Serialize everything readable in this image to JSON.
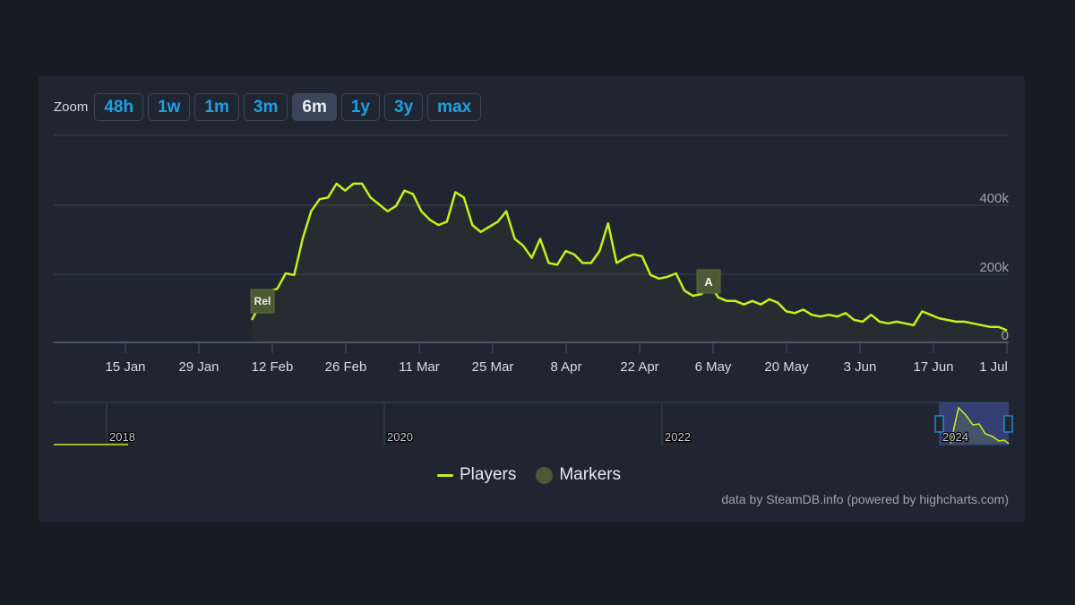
{
  "zoom": {
    "label": "Zoom",
    "buttons": [
      "48h",
      "1w",
      "1m",
      "3m",
      "6m",
      "1y",
      "3y",
      "max"
    ],
    "active": "6m"
  },
  "legend": {
    "players": "Players",
    "markers": "Markers"
  },
  "credits": "data by SteamDB.info (powered by highcharts.com)",
  "colors": {
    "line": "#c2f21a",
    "marker": "#4a5a34",
    "accent": "#1da1e6",
    "panel": "#1f2631",
    "background": "#171b22"
  },
  "markers": [
    {
      "label": "Rel",
      "date": "~9 Feb"
    },
    {
      "label": "A",
      "date": "~6 May"
    }
  ],
  "navigator": {
    "years": [
      "2018",
      "2020",
      "2022",
      "2024"
    ]
  },
  "chart_data": {
    "type": "line",
    "title": "",
    "xlabel": "",
    "ylabel": "Players",
    "x_ticks": [
      "15 Jan",
      "29 Jan",
      "12 Feb",
      "26 Feb",
      "11 Mar",
      "25 Mar",
      "8 Apr",
      "22 Apr",
      "6 May",
      "20 May",
      "3 Jun",
      "17 Jun",
      "1 Jul"
    ],
    "y_ticks": [
      "0",
      "200k",
      "400k"
    ],
    "ylim": [
      0,
      600000
    ],
    "grid": true,
    "legend_position": "bottom",
    "series": [
      {
        "name": "Players",
        "x": [
          "9 Feb",
          "10 Feb",
          "11 Feb",
          "12 Feb",
          "13 Feb",
          "14 Feb",
          "15 Feb",
          "16 Feb",
          "17 Feb",
          "18 Feb",
          "19 Feb",
          "20 Feb",
          "21 Feb",
          "22 Feb",
          "23 Feb",
          "24 Feb",
          "25 Feb",
          "26 Feb",
          "27 Feb",
          "28 Feb",
          "1 Mar",
          "2 Mar",
          "3 Mar",
          "4 Mar",
          "5 Mar",
          "6 Mar",
          "7 Mar",
          "8 Mar",
          "9 Mar",
          "10 Mar",
          "11 Mar",
          "12 Mar",
          "13 Mar",
          "14 Mar",
          "15 Mar",
          "17 Mar",
          "19 Mar",
          "21 Mar",
          "23 Mar",
          "25 Mar",
          "27 Mar",
          "29 Mar",
          "31 Mar",
          "2 Apr",
          "4 Apr",
          "6 Apr",
          "7 Apr",
          "8 Apr",
          "10 Apr",
          "12 Apr",
          "14 Apr",
          "16 Apr",
          "18 Apr",
          "20 Apr",
          "22 Apr",
          "24 Apr",
          "26 Apr",
          "28 Apr",
          "30 Apr",
          "2 May",
          "4 May",
          "6 May",
          "8 May",
          "10 May",
          "12 May",
          "14 May",
          "16 May",
          "18 May",
          "20 May",
          "22 May",
          "24 May",
          "26 May",
          "28 May",
          "30 May",
          "1 Jun",
          "3 Jun",
          "5 Jun",
          "7 Jun",
          "9 Jun",
          "11 Jun",
          "13 Jun",
          "15 Jun",
          "17 Jun",
          "19 Jun",
          "21 Jun",
          "23 Jun",
          "25 Jun",
          "27 Jun",
          "29 Jun",
          "1 Jul"
        ],
        "values": [
          65000,
          110000,
          150000,
          155000,
          200000,
          195000,
          300000,
          380000,
          415000,
          420000,
          460000,
          440000,
          460000,
          460000,
          420000,
          400000,
          380000,
          395000,
          440000,
          430000,
          380000,
          355000,
          340000,
          350000,
          435000,
          420000,
          340000,
          320000,
          335000,
          350000,
          380000,
          300000,
          280000,
          245000,
          300000,
          230000,
          225000,
          265000,
          255000,
          230000,
          230000,
          265000,
          345000,
          230000,
          245000,
          255000,
          250000,
          195000,
          185000,
          190000,
          200000,
          150000,
          135000,
          140000,
          165000,
          130000,
          120000,
          120000,
          110000,
          120000,
          110000,
          125000,
          115000,
          90000,
          85000,
          95000,
          80000,
          75000,
          80000,
          75000,
          85000,
          65000,
          60000,
          80000,
          60000,
          55000,
          60000,
          55000,
          50000,
          90000,
          80000,
          70000,
          65000,
          60000,
          60000,
          55000,
          50000,
          45000,
          45000,
          35000
        ]
      },
      {
        "name": "Markers",
        "values": []
      }
    ]
  }
}
